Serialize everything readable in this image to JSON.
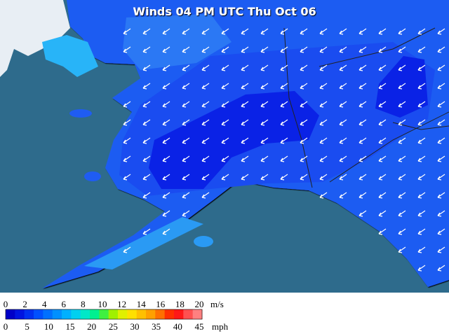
{
  "title": "Winds 04 PM UTC Thu Oct 06",
  "legend": {
    "ms_ticks": [
      0,
      2,
      4,
      6,
      8,
      10,
      12,
      14,
      16,
      18,
      20
    ],
    "ms_unit": "m/s",
    "mph_ticks": [
      0,
      5,
      10,
      15,
      20,
      25,
      30,
      35,
      40,
      45
    ],
    "mph_unit": "mph",
    "colors": [
      "#0000c8",
      "#0014e0",
      "#0030f0",
      "#0050ff",
      "#0070ff",
      "#0090ff",
      "#00b0ff",
      "#00d0f0",
      "#00e8c8",
      "#00f090",
      "#40f040",
      "#a0f000",
      "#e0f000",
      "#ffe000",
      "#ffc000",
      "#ffa000",
      "#ff7000",
      "#ff3000",
      "#ff1818",
      "#ff5050",
      "#ff8080"
    ]
  }
}
